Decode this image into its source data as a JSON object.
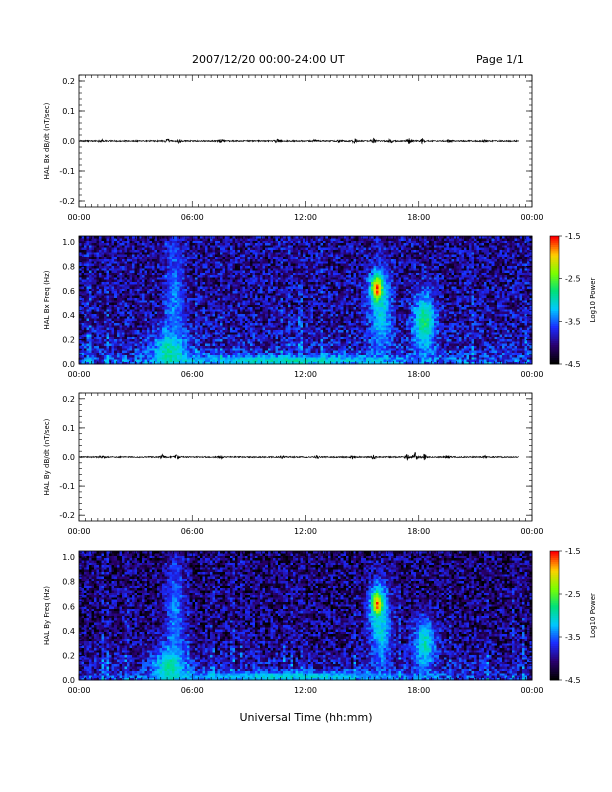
{
  "header": {
    "title": "2007/12/20   00:00-24:00 UT",
    "page": "Page 1/1"
  },
  "x_axis_label": "Universal Time (hh:mm)",
  "colors": {
    "background": "#ffffff",
    "axis": "#000000",
    "colorbar": [
      "#000000",
      "#2a0070",
      "#1a2cff",
      "#00c8ff",
      "#00e07a",
      "#7cff00",
      "#ffd000",
      "#ff0000"
    ]
  },
  "chart_data": [
    {
      "type": "line",
      "id": "bx-dbdt",
      "ylabel": "HAL Bx dB/dt (nT/sec)",
      "xlim": [
        "00:00",
        "24:00"
      ],
      "ylim": [
        -0.22,
        0.22
      ],
      "xticks": [
        "00:00",
        "06:00",
        "12:00",
        "18:00",
        "00:00"
      ],
      "yticks": [
        "-0.2",
        "-0.1",
        "0.0",
        "0.1",
        "0.2"
      ],
      "ytick_values": [
        -0.2,
        -0.1,
        0.0,
        0.1,
        0.2
      ],
      "series": [
        {
          "baseline": 0.0,
          "data_end_hour": 23.3,
          "background_amplitude": 0.002,
          "bursts": [
            {
              "t": 1.2,
              "amp": 0.004
            },
            {
              "t": 4.7,
              "amp": 0.008
            },
            {
              "t": 5.3,
              "amp": 0.006
            },
            {
              "t": 7.5,
              "amp": 0.005
            },
            {
              "t": 10.5,
              "amp": 0.005
            },
            {
              "t": 12.5,
              "amp": 0.004
            },
            {
              "t": 13.8,
              "amp": 0.004
            },
            {
              "t": 14.6,
              "amp": 0.007
            },
            {
              "t": 15.6,
              "amp": 0.009
            },
            {
              "t": 16.5,
              "amp": 0.006
            },
            {
              "t": 17.5,
              "amp": 0.009
            },
            {
              "t": 18.2,
              "amp": 0.008
            },
            {
              "t": 19.6,
              "amp": 0.005
            },
            {
              "t": 21.5,
              "amp": 0.003
            }
          ]
        }
      ]
    },
    {
      "type": "heatmap",
      "id": "bx-spectrogram",
      "ylabel": "HAL Bx Freq (Hz)",
      "xlim": [
        "00:00",
        "24:00"
      ],
      "ylim": [
        0.0,
        1.05
      ],
      "xticks": [
        "00:00",
        "06:00",
        "12:00",
        "18:00",
        "00:00"
      ],
      "yticks": [
        "0.0",
        "0.2",
        "0.4",
        "0.6",
        "0.8",
        "1.0"
      ],
      "ytick_values": [
        0.0,
        0.2,
        0.4,
        0.6,
        0.8,
        1.0
      ],
      "colorbar": {
        "label": "Log10 Power",
        "range": [
          -4.5,
          -1.5
        ],
        "ticks": [
          "-1.5",
          "-2.5",
          "-3.5",
          "-4.5"
        ],
        "tick_values": [
          -1.5,
          -2.5,
          -3.5,
          -4.5
        ]
      },
      "background_level": -4.0,
      "features": [
        {
          "t": 4.8,
          "f": 0.1,
          "dt": 0.9,
          "df": 0.18,
          "level": -2.9
        },
        {
          "t": 5.1,
          "f": 0.5,
          "dt": 0.5,
          "df": 0.55,
          "level": -3.4
        },
        {
          "t": 15.8,
          "f": 0.62,
          "dt": 0.35,
          "df": 0.12,
          "level": -1.6
        },
        {
          "t": 16.0,
          "f": 0.45,
          "dt": 0.6,
          "df": 0.35,
          "level": -3.1
        },
        {
          "t": 18.3,
          "f": 0.35,
          "dt": 0.6,
          "df": 0.25,
          "level": -2.8
        },
        {
          "t": 11.0,
          "f": 0.03,
          "dt": 6.0,
          "df": 0.04,
          "level": -3.0
        }
      ]
    },
    {
      "type": "line",
      "id": "by-dbdt",
      "ylabel": "HAL By dB/dt (nT/sec)",
      "xlim": [
        "00:00",
        "24:00"
      ],
      "ylim": [
        -0.22,
        0.22
      ],
      "xticks": [
        "00:00",
        "06:00",
        "12:00",
        "18:00",
        "00:00"
      ],
      "yticks": [
        "-0.2",
        "-0.1",
        "0.0",
        "0.1",
        "0.2"
      ],
      "ytick_values": [
        -0.2,
        -0.1,
        0.0,
        0.1,
        0.2
      ],
      "series": [
        {
          "baseline": 0.0,
          "data_end_hour": 23.3,
          "background_amplitude": 0.002,
          "bursts": [
            {
              "t": 1.2,
              "amp": 0.004
            },
            {
              "t": 4.4,
              "amp": 0.007
            },
            {
              "t": 5.2,
              "amp": 0.007
            },
            {
              "t": 7.5,
              "amp": 0.005
            },
            {
              "t": 10.8,
              "amp": 0.004
            },
            {
              "t": 12.6,
              "amp": 0.004
            },
            {
              "t": 14.5,
              "amp": 0.005
            },
            {
              "t": 15.6,
              "amp": 0.006
            },
            {
              "t": 17.4,
              "amp": 0.008
            },
            {
              "t": 17.8,
              "amp": 0.015
            },
            {
              "t": 18.3,
              "amp": 0.009
            },
            {
              "t": 19.5,
              "amp": 0.005
            },
            {
              "t": 21.5,
              "amp": 0.003
            }
          ]
        }
      ]
    },
    {
      "type": "heatmap",
      "id": "by-spectrogram",
      "ylabel": "HAL By Freq (Hz)",
      "xlim": [
        "00:00",
        "24:00"
      ],
      "ylim": [
        0.0,
        1.05
      ],
      "xticks": [
        "00:00",
        "06:00",
        "12:00",
        "18:00",
        "00:00"
      ],
      "yticks": [
        "0.0",
        "0.2",
        "0.4",
        "0.6",
        "0.8",
        "1.0"
      ],
      "ytick_values": [
        0.0,
        0.2,
        0.4,
        0.6,
        0.8,
        1.0
      ],
      "colorbar": {
        "label": "Log10 Power",
        "range": [
          -4.5,
          -1.5
        ],
        "ticks": [
          "-1.5",
          "-2.5",
          "-3.5",
          "-4.5"
        ],
        "tick_values": [
          -1.5,
          -2.5,
          -3.5,
          -4.5
        ]
      },
      "background_level": -4.1,
      "features": [
        {
          "t": 4.8,
          "f": 0.1,
          "dt": 0.9,
          "df": 0.18,
          "level": -2.9
        },
        {
          "t": 5.1,
          "f": 0.5,
          "dt": 0.5,
          "df": 0.55,
          "level": -3.4
        },
        {
          "t": 15.8,
          "f": 0.62,
          "dt": 0.35,
          "df": 0.12,
          "level": -1.7
        },
        {
          "t": 16.0,
          "f": 0.45,
          "dt": 0.6,
          "df": 0.35,
          "level": -3.1
        },
        {
          "t": 18.3,
          "f": 0.3,
          "dt": 0.6,
          "df": 0.22,
          "level": -3.0
        },
        {
          "t": 11.0,
          "f": 0.03,
          "dt": 6.0,
          "df": 0.04,
          "level": -3.1
        }
      ]
    }
  ]
}
